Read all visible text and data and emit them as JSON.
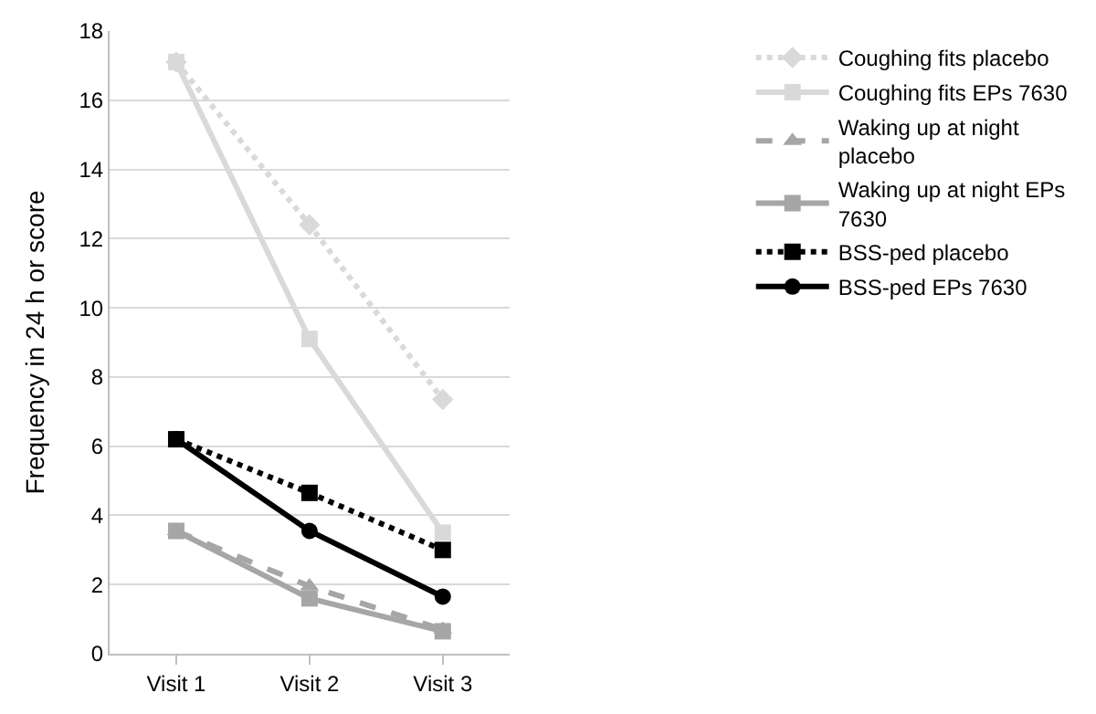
{
  "chart_data": {
    "type": "line",
    "ylabel": "Frequency in 24 h or score",
    "categories": [
      "Visit 1",
      "Visit 2",
      "Visit 3"
    ],
    "ylim": [
      0,
      18
    ],
    "yticks": [
      0,
      2,
      4,
      6,
      8,
      10,
      12,
      14,
      16,
      18
    ],
    "grid": "y",
    "legend": "right",
    "series": [
      {
        "name": "Coughing fits placebo",
        "color": "#d9d9d9",
        "values": [
          17.1,
          12.4,
          7.35
        ],
        "marker": "diamond",
        "line_style": "dotted"
      },
      {
        "name": "Coughing fits EPs 7630",
        "color": "#d9d9d9",
        "values": [
          17.1,
          9.1,
          3.5
        ],
        "marker": "square",
        "line_style": "solid"
      },
      {
        "name": "Waking up at night placebo",
        "color": "#a6a6a6",
        "values": [
          3.55,
          1.95,
          0.7
        ],
        "marker": "triangle",
        "line_style": "dashed"
      },
      {
        "name": "Waking up at night EPs 7630",
        "color": "#a6a6a6",
        "values": [
          3.55,
          1.6,
          0.65
        ],
        "marker": "square",
        "line_style": "solid"
      },
      {
        "name": "BSS-ped placebo",
        "color": "#000000",
        "values": [
          6.2,
          4.65,
          3.0
        ],
        "marker": "square",
        "line_style": "dotted"
      },
      {
        "name": "BSS-ped EPs 7630",
        "color": "#000000",
        "values": [
          6.2,
          3.55,
          1.65
        ],
        "marker": "circle",
        "line_style": "solid"
      }
    ]
  }
}
